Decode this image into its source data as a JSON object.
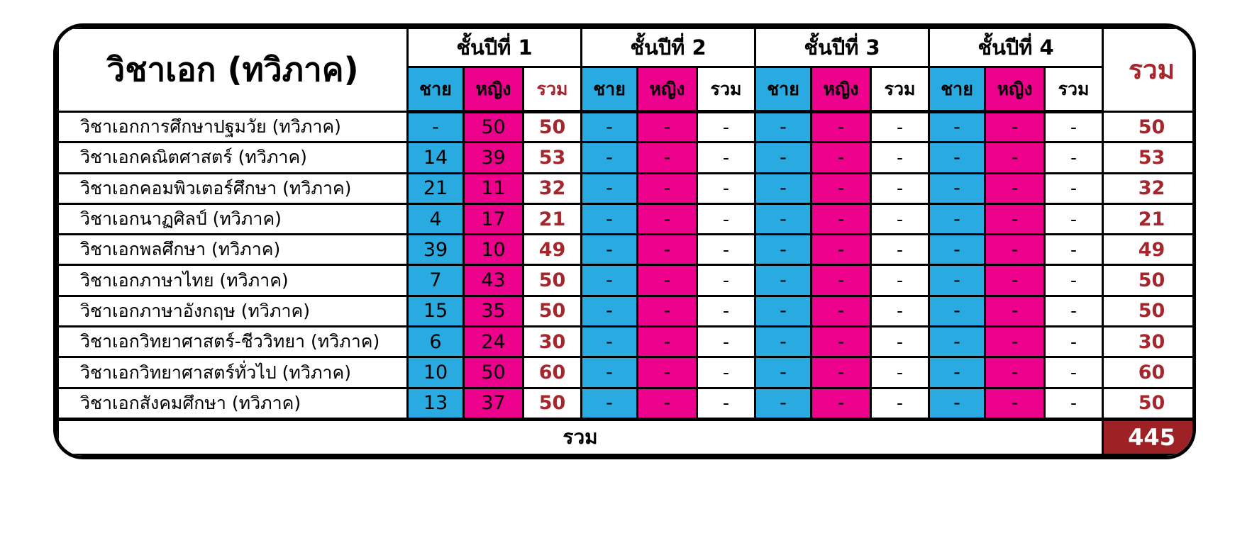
{
  "header": {
    "major_label": "วิชาเอก (ทวิภาค)",
    "year_groups": [
      "ชั้นปีที่ 1",
      "ชั้นปีที่ 2",
      "ชั้นปีที่ 3",
      "ชั้นปีที่ 4"
    ],
    "sub_male": "ชาย",
    "sub_female": "หญิง",
    "sub_total": "รวม",
    "grand_total_label": "รวม"
  },
  "footer": {
    "label": "รวม",
    "grand_total": "445"
  },
  "colors": {
    "male_bg": "#29ABE2",
    "female_bg": "#EC008C",
    "red_text": "#A6262D",
    "grand_total_bg": "#9E2126",
    "border": "#000000"
  },
  "chart_data": {
    "type": "table",
    "title": "วิชาเอก (ทวิภาค)",
    "column_groups": [
      "ชั้นปีที่ 1",
      "ชั้นปีที่ 2",
      "ชั้นปีที่ 3",
      "ชั้นปีที่ 4",
      "รวม"
    ],
    "sub_columns": [
      "ชาย",
      "หญิง",
      "รวม"
    ],
    "rows": [
      {
        "name": "วิชาเอกการศึกษาปฐมวัย (ทวิภาค)",
        "values": [
          "-",
          "50",
          "50",
          "-",
          "-",
          "-",
          "-",
          "-",
          "-",
          "-",
          "-",
          "-"
        ],
        "total": "50"
      },
      {
        "name": "วิชาเอกคณิตศาสตร์ (ทวิภาค)",
        "values": [
          "14",
          "39",
          "53",
          "-",
          "-",
          "-",
          "-",
          "-",
          "-",
          "-",
          "-",
          "-"
        ],
        "total": "53"
      },
      {
        "name": "วิชาเอกคอมพิวเตอร์ศึกษา (ทวิภาค)",
        "values": [
          "21",
          "11",
          "32",
          "-",
          "-",
          "-",
          "-",
          "-",
          "-",
          "-",
          "-",
          "-"
        ],
        "total": "32"
      },
      {
        "name": "วิชาเอกนาฏศิลป์ (ทวิภาค)",
        "values": [
          "4",
          "17",
          "21",
          "-",
          "-",
          "-",
          "-",
          "-",
          "-",
          "-",
          "-",
          "-"
        ],
        "total": "21"
      },
      {
        "name": "วิชาเอกพลศึกษา (ทวิภาค)",
        "values": [
          "39",
          "10",
          "49",
          "-",
          "-",
          "-",
          "-",
          "-",
          "-",
          "-",
          "-",
          "-"
        ],
        "total": "49"
      },
      {
        "name": "วิชาเอกภาษาไทย (ทวิภาค)",
        "values": [
          "7",
          "43",
          "50",
          "-",
          "-",
          "-",
          "-",
          "-",
          "-",
          "-",
          "-",
          "-"
        ],
        "total": "50"
      },
      {
        "name": "วิชาเอกภาษาอังกฤษ (ทวิภาค)",
        "values": [
          "15",
          "35",
          "50",
          "-",
          "-",
          "-",
          "-",
          "-",
          "-",
          "-",
          "-",
          "-"
        ],
        "total": "50"
      },
      {
        "name": "วิชาเอกวิทยาศาสตร์-ชีววิทยา (ทวิภาค)",
        "values": [
          "6",
          "24",
          "30",
          "-",
          "-",
          "-",
          "-",
          "-",
          "-",
          "-",
          "-",
          "-"
        ],
        "total": "30"
      },
      {
        "name": "วิชาเอกวิทยาศาสตร์ทั่วไป (ทวิภาค)",
        "values": [
          "10",
          "50",
          "60",
          "-",
          "-",
          "-",
          "-",
          "-",
          "-",
          "-",
          "-",
          "-"
        ],
        "total": "60"
      },
      {
        "name": "วิชาเอกสังคมศึกษา (ทวิภาค)",
        "values": [
          "13",
          "37",
          "50",
          "-",
          "-",
          "-",
          "-",
          "-",
          "-",
          "-",
          "-",
          "-"
        ],
        "total": "50"
      }
    ],
    "grand_total": "445"
  }
}
